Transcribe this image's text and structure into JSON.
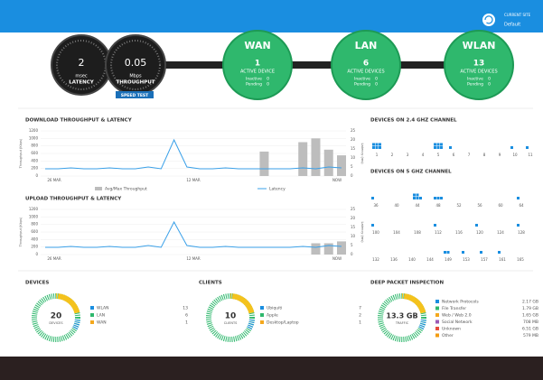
{
  "header": {
    "site_label": "CURRENT SITE",
    "site_name": "Default"
  },
  "gauges": [
    {
      "value": "2",
      "unit": "msec",
      "label": "LATENCY"
    },
    {
      "value": "0.05",
      "unit": "Mbps",
      "label": "THROUGHPUT"
    }
  ],
  "speed_test": "SPEED TEST",
  "nodes": [
    {
      "title": "WAN",
      "count": "1",
      "label": "ACTIVE DEVICE",
      "rows": [
        [
          "Inactive",
          "0"
        ],
        [
          "Pending",
          "0"
        ]
      ]
    },
    {
      "title": "LAN",
      "count": "6",
      "label": "ACTIVE DEVICES",
      "rows": [
        [
          "Inactive",
          "0"
        ],
        [
          "Pending",
          "0"
        ]
      ]
    },
    {
      "title": "WLAN",
      "count": "13",
      "label": "ACTIVE DEVICES",
      "rows": [
        [
          "Inactive",
          "0"
        ],
        [
          "Pending",
          "0"
        ]
      ]
    }
  ],
  "download_chart": {
    "title": "DOWNLOAD THROUGHPUT & LATENCY",
    "ylabel": "Throughput (Kbps)",
    "y2label": "Latency (ms)",
    "ylim": [
      0,
      1200
    ],
    "yticks": [
      0,
      200,
      400,
      600,
      800,
      1000,
      1200
    ],
    "y2lim": [
      0,
      25
    ],
    "y2ticks": [
      0,
      5,
      10,
      15,
      20,
      25
    ],
    "x_labels": [
      "26 MAR",
      "12 MAR",
      "NOW"
    ],
    "latency": [
      4,
      4,
      4.5,
      4,
      4,
      4.5,
      4,
      4,
      5,
      4,
      20,
      5,
      4,
      4,
      4.5,
      4,
      4,
      4,
      4,
      4,
      4.5,
      4,
      5,
      4.5
    ],
    "throughput": [
      null,
      null,
      null,
      null,
      null,
      null,
      null,
      null,
      null,
      null,
      null,
      null,
      null,
      null,
      null,
      null,
      null,
      650,
      null,
      null,
      900,
      1000,
      700,
      550
    ],
    "legend": [
      "Avg/Max Throughput",
      "Latency"
    ]
  },
  "upload_chart": {
    "title": "UPLOAD THROUGHPUT & LATENCY",
    "ylabel": "Throughput (Kbps)",
    "y2label": "Latency (ms)",
    "ylim": [
      0,
      1200
    ],
    "yticks": [
      0,
      200,
      400,
      600,
      800,
      1000,
      1200
    ],
    "y2lim": [
      0,
      25
    ],
    "y2ticks": [
      0,
      5,
      10,
      15,
      20,
      25
    ],
    "x_labels": [
      "26 MAR",
      "12 MAR",
      "NOW"
    ],
    "latency": [
      4,
      4,
      4.5,
      4,
      4,
      4.5,
      4,
      4,
      5,
      4,
      18,
      5,
      4,
      4,
      4.5,
      4,
      4,
      4,
      4,
      4,
      4.5,
      4,
      5,
      4.5
    ],
    "throughput": [
      null,
      null,
      null,
      null,
      null,
      null,
      null,
      null,
      null,
      null,
      null,
      null,
      null,
      null,
      null,
      null,
      null,
      null,
      null,
      null,
      null,
      300,
      300,
      350
    ]
  },
  "channels_24": {
    "title": "DEVICES ON 2.4 GHZ CHANNEL",
    "channels": [
      1,
      2,
      3,
      4,
      5,
      6,
      7,
      8,
      9,
      10,
      11
    ],
    "counts": [
      6,
      0,
      0,
      0,
      6,
      1,
      0,
      0,
      0,
      1,
      1
    ]
  },
  "channels_5": {
    "title": "DEVICES ON 5 GHZ CHANNEL",
    "rows": [
      {
        "channels": [
          36,
          40,
          44,
          48,
          52,
          56,
          60,
          64
        ],
        "counts": [
          1,
          0,
          5,
          3,
          0,
          0,
          0,
          1
        ]
      },
      {
        "channels": [
          100,
          104,
          108,
          112,
          116,
          120,
          124,
          128
        ],
        "counts": [
          1,
          0,
          0,
          1,
          0,
          1,
          0,
          1
        ]
      },
      {
        "channels": [
          132,
          136,
          140,
          144,
          149,
          153,
          157,
          161,
          165
        ],
        "counts": [
          0,
          0,
          0,
          0,
          2,
          1,
          1,
          1,
          0
        ]
      }
    ]
  },
  "devices": {
    "title": "DEVICES",
    "total": "20",
    "total_label": "DEVICES",
    "items": [
      [
        "WLAN",
        "13"
      ],
      [
        "LAN",
        "6"
      ],
      [
        "WAN",
        "1"
      ]
    ]
  },
  "clients": {
    "title": "CLIENTS",
    "total": "10",
    "total_label": "CLIENTS",
    "items": [
      [
        "Ubiquiti",
        "7"
      ],
      [
        "Apple",
        "2"
      ],
      [
        "Desktop/Laptop",
        "1"
      ]
    ]
  },
  "dpi": {
    "title": "DEEP PACKET INSPECTION",
    "total": "13.3 GB",
    "total_label": "TRAFFIC",
    "items": [
      [
        "Network Protocols",
        "2.17 GB"
      ],
      [
        "File Transfer",
        "1.79 GB"
      ],
      [
        "Web / Web 2.0",
        "1.65 GB"
      ],
      [
        "Social Network",
        "708 MB"
      ],
      [
        "Unknown",
        "6.51 GB"
      ],
      [
        "Other",
        "579 MB"
      ]
    ]
  }
}
